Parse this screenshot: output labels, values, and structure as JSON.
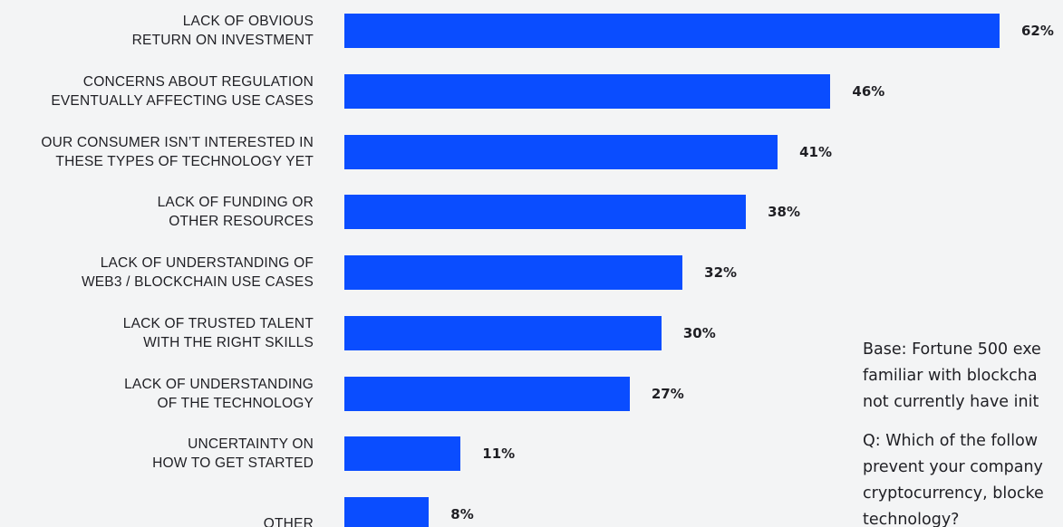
{
  "chart_data": {
    "type": "bar",
    "orientation": "horizontal",
    "title": "",
    "xlabel": "",
    "ylabel": "",
    "xlim": [
      0,
      62
    ],
    "grid": false,
    "bar_color": "#0a4dff",
    "background_color": "#f3f4f5",
    "categories": [
      [
        "LACK OF OBVIOUS",
        "RETURN ON INVESTMENT"
      ],
      [
        "CONCERNS ABOUT REGULATION",
        "EVENTUALLY AFFECTING USE CASES"
      ],
      [
        "OUR CONSUMER ISN’T INTERESTED IN",
        "THESE TYPES OF TECHNOLOGY YET"
      ],
      [
        "LACK OF FUNDING OR",
        "OTHER RESOURCES"
      ],
      [
        "LACK OF UNDERSTANDING OF",
        "WEB3 / BLOCKCHAIN USE CASES"
      ],
      [
        "LACK OF TRUSTED TALENT",
        "WITH THE RIGHT SKILLS"
      ],
      [
        "LACK OF UNDERSTANDING",
        "OF THE TECHNOLOGY"
      ],
      [
        "UNCERTAINTY ON",
        "HOW TO GET STARTED"
      ],
      [
        "OTHER"
      ]
    ],
    "values": [
      62,
      46,
      41,
      38,
      32,
      30,
      27,
      11,
      8
    ],
    "value_labels": [
      "62%",
      "46%",
      "41%",
      "38%",
      "32%",
      "30%",
      "27%",
      "11%",
      "8%"
    ]
  },
  "note": {
    "base": "Base: Fortune 500 exe\nfamiliar with blockcha\nnot currently have init",
    "question": "Q: Which of the follow\nprevent your company\ncryptocurrency, blocke\ntechnology?"
  }
}
